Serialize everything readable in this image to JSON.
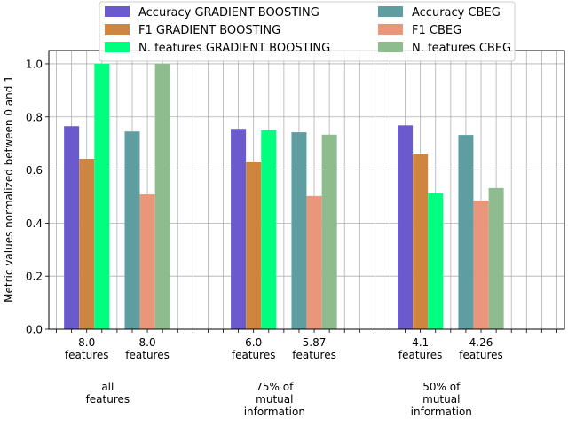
{
  "chart_data": {
    "type": "bar",
    "ylabel": "Metric values normalized between 0 and 1",
    "ylim": [
      0,
      1.05
    ],
    "yticks": [
      "0.0",
      "0.2",
      "0.4",
      "0.6",
      "0.8",
      "1.0"
    ],
    "grid": true,
    "legend_position": "top-center",
    "group_labels": [
      [
        "all",
        "features"
      ],
      [
        "75% of",
        "mutual",
        "information"
      ],
      [
        "50% of",
        "mutual",
        "information"
      ]
    ],
    "models": [
      {
        "tick_labels": [
          [
            "8.0",
            "features"
          ],
          [
            "6.0",
            "features"
          ],
          [
            "4.1",
            "features"
          ]
        ],
        "series": [
          {
            "name": "Accuracy GRADIENT BOOSTING",
            "color": "#6a5acd",
            "values": [
              0.765,
              0.755,
              0.768
            ]
          },
          {
            "name": "F1 GRADIENT BOOSTING",
            "color": "#cd853f",
            "values": [
              0.642,
              0.632,
              0.662
            ]
          },
          {
            "name": "N. features GRADIENT BOOSTING",
            "color": "#00ff7f",
            "values": [
              1.0,
              0.75,
              0.512
            ]
          }
        ]
      },
      {
        "tick_labels": [
          [
            "8.0",
            "features"
          ],
          [
            "5.87",
            "features"
          ],
          [
            "4.26",
            "features"
          ]
        ],
        "series": [
          {
            "name": "Accuracy CBEG",
            "color": "#5f9ea0",
            "values": [
              0.745,
              0.742,
              0.732
            ]
          },
          {
            "name": "F1 CBEG",
            "color": "#e9967a",
            "values": [
              0.508,
              0.502,
              0.485
            ]
          },
          {
            "name": "N. features CBEG",
            "color": "#8fbc8f",
            "values": [
              1.0,
              0.733,
              0.532
            ]
          }
        ]
      }
    ]
  }
}
